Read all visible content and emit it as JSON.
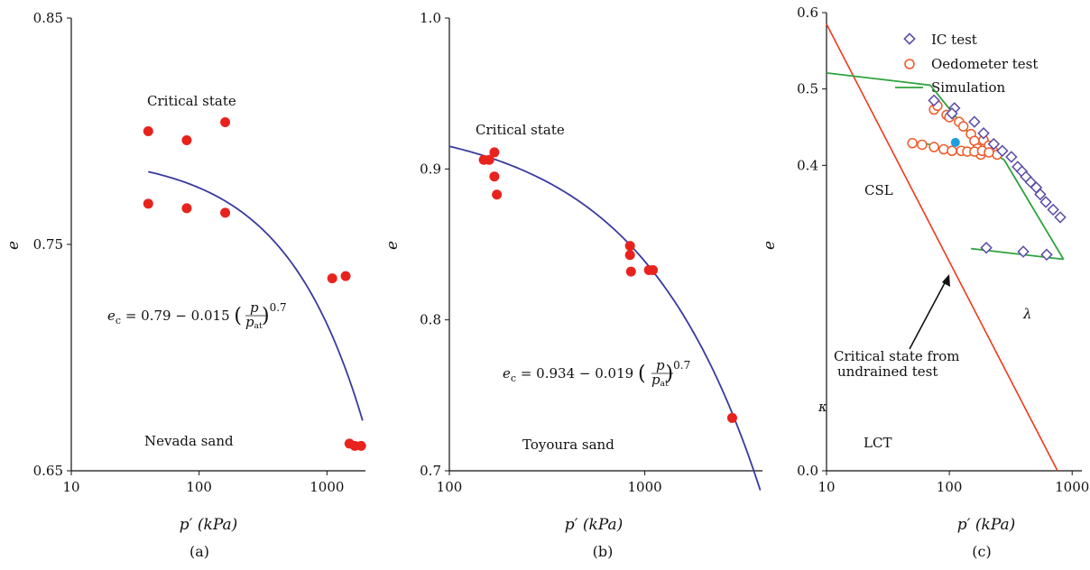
{
  "chart_data": [
    {
      "type": "scatter",
      "caption": "(a)",
      "xlabel": "p′ (kPa)",
      "ylabel": "e",
      "xscale": "log",
      "xlim": [
        10,
        2000
      ],
      "ylim": [
        0.65,
        0.85
      ],
      "xticks": [
        10,
        100,
        1000
      ],
      "xtick_labels": [
        "10",
        "100",
        "1000"
      ],
      "yticks": [
        0.65,
        0.75,
        0.85
      ],
      "ytick_labels": [
        "0.65",
        "0.75",
        "0.85"
      ],
      "annotations": [
        "Critical state",
        "Nevada sand"
      ],
      "equation": {
        "lhs": "e",
        "sub": "c",
        "rhs": " = 0.79 − 0.015 ",
        "num": "p",
        "den": "p",
        "den_sub": "at",
        "exp": "0.7"
      },
      "curve": {
        "a": 0.79,
        "b": 0.015,
        "n": 0.7,
        "pat": 100,
        "x_range": [
          40,
          1900
        ],
        "color": "#3a3aa0"
      },
      "points": {
        "color": "#e8231e",
        "x": [
          40,
          80,
          160,
          40,
          80,
          160,
          1100,
          1400,
          1500,
          1650,
          1850
        ],
        "y": [
          0.8,
          0.796,
          0.804,
          0.768,
          0.766,
          0.764,
          0.735,
          0.736,
          0.662,
          0.661,
          0.661
        ]
      }
    },
    {
      "type": "scatter",
      "caption": "(b)",
      "xlabel": "p′ (kPa)",
      "ylabel": "e",
      "xscale": "log",
      "xlim": [
        100,
        4000
      ],
      "ylim": [
        0.7,
        1.0
      ],
      "xticks": [
        100,
        1000
      ],
      "xtick_labels": [
        "100",
        "1000"
      ],
      "yticks": [
        0.7,
        0.8,
        0.9,
        1.0
      ],
      "ytick_labels": [
        "0.7",
        "0.8",
        "0.9",
        "1.0"
      ],
      "annotations": [
        "Critical state",
        "Toyoura sand"
      ],
      "equation": {
        "lhs": "e",
        "sub": "c",
        "rhs": " = 0.934 − 0.019 ",
        "num": "p",
        "den": "p",
        "den_sub": "at",
        "exp": "0.7"
      },
      "curve": {
        "a": 0.934,
        "b": 0.019,
        "n": 0.7,
        "pat": 100,
        "x_range": [
          100,
          3900
        ],
        "color": "#3a3aa0"
      },
      "points": {
        "color": "#e8231e",
        "x": [
          150,
          160,
          170,
          170,
          175,
          840,
          840,
          850,
          1050,
          1100,
          2800
        ],
        "y": [
          0.906,
          0.906,
          0.911,
          0.895,
          0.883,
          0.849,
          0.843,
          0.832,
          0.833,
          0.833,
          0.735
        ]
      }
    },
    {
      "type": "scatter",
      "caption": "(c)",
      "xlabel": "p′ (kPa)",
      "ylabel": "e",
      "xscale": "log",
      "xlim": [
        10,
        1200
      ],
      "ylim": [
        0.0,
        0.6
      ],
      "xticks": [
        10,
        100,
        1000
      ],
      "xtick_labels": [
        "10",
        "100",
        "1000"
      ],
      "yticks": [
        0.0,
        0.4,
        0.5,
        0.6
      ],
      "ytick_labels": [
        "0.0",
        "0.4",
        "0.5",
        "0.6"
      ],
      "annotations": [
        "CSL",
        "LCT",
        "λ",
        "κ",
        "Critical state from",
        "undrained test"
      ],
      "legend": {
        "position": "top-right",
        "entries": [
          "IC test",
          "Oedometer test",
          "Simulation"
        ]
      },
      "colors": {
        "ic": "#5a4aa6",
        "oedometer": "#ee5a2a",
        "simulation": "#2ea33c",
        "csl": "#ee3a1c",
        "critical_point": "#1e9ee0"
      },
      "ic_test": {
        "x": [
          75,
          110,
          105,
          160,
          190,
          230,
          270,
          320,
          360,
          390,
          420,
          460,
          510,
          550,
          610,
          700,
          800,
          200,
          400,
          620
        ],
        "y": [
          0.485,
          0.475,
          0.468,
          0.457,
          0.442,
          0.428,
          0.419,
          0.411,
          0.398,
          0.392,
          0.385,
          0.378,
          0.371,
          0.362,
          0.352,
          0.342,
          0.332,
          0.292,
          0.287,
          0.283
        ]
      },
      "oedometer_test": {
        "x": [
          75,
          80,
          95,
          100,
          120,
          130,
          150,
          160,
          170,
          180,
          190,
          210,
          230,
          245,
          50,
          60,
          75,
          90,
          105,
          125,
          140,
          160,
          185,
          210
        ],
        "y": [
          0.473,
          0.478,
          0.466,
          0.463,
          0.457,
          0.451,
          0.441,
          0.432,
          0.422,
          0.414,
          0.433,
          0.426,
          0.418,
          0.414,
          0.429,
          0.427,
          0.424,
          0.421,
          0.419,
          0.419,
          0.418,
          0.418,
          0.419,
          0.417
        ]
      },
      "simulation_lines": [
        {
          "x": [
            10,
            70,
            170,
            280,
            850
          ],
          "y": [
            0.521,
            0.505,
            0.428,
            0.407,
            0.277
          ]
        },
        {
          "x": [
            60,
            100,
            150,
            260
          ],
          "y": [
            0.43,
            0.42,
            0.417,
            0.412
          ]
        },
        {
          "x": [
            150,
            850
          ],
          "y": [
            0.291,
            0.277
          ]
        }
      ],
      "csl_line": {
        "x": [
          10,
          760
        ],
        "y": [
          0.585,
          0.0
        ]
      },
      "critical_point": {
        "x": 112,
        "y": 0.43
      }
    }
  ]
}
